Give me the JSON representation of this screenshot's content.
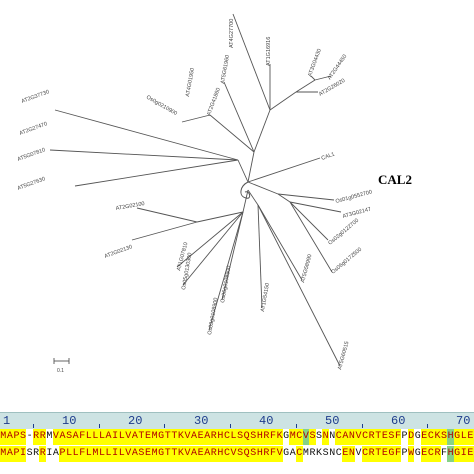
{
  "tree": {
    "highlight_label": "CAL2",
    "scale_label": "0.1",
    "leaves": [
      "AT4G27700",
      "AT1G16916",
      "AT3G04430",
      "AT2G44450",
      "AT2G26020",
      "AT5G61960",
      "AT4G01950",
      "Os0g0210900",
      "AT2G41860",
      "AT2G37730",
      "AT2G27470",
      "AT5G07810",
      "AT5G27630",
      "CAL1",
      "Os01g0552700",
      "AT3G02147",
      "Os02g0122700",
      "Os06g0172500",
      "AT5G58990",
      "AT5G60515",
      "AT1G54150",
      "Os06g0108800",
      "Os03g0108900",
      "AT2G02130",
      "AT2G02100",
      "AT1G07810",
      "Os05g0130300"
    ]
  },
  "alignment": {
    "ruler": [
      "1",
      "10",
      "20",
      "30",
      "40",
      "50",
      "60",
      "70"
    ],
    "sequences": [
      "MAPS-RRMVASAFLLLAILVATEMGTTKVAEARHCLSQSHRFKGMCVSSNNCANVCRTESFPDGECKSHGLEE",
      "MAPISRRIAPLLFLMLLILVASEMGTTKVAEARHCVSQSHRFVGACMRKSNCENVCRTEGFPWGECRFHGIEE"
    ],
    "colors": [
      "yyyywyywyyyyyyyyyyyyyyyyyyyyyyyyyyyyyyyyyyywyygywywyyyyyyyyyywywyyyygyyyy",
      "yyyywwywwyyyyyyyyyyyyyyyyyyyyyyyyyyyyyyyyyywwywwwwwwyywyyyyyywywyyywgyyyy"
    ]
  }
}
